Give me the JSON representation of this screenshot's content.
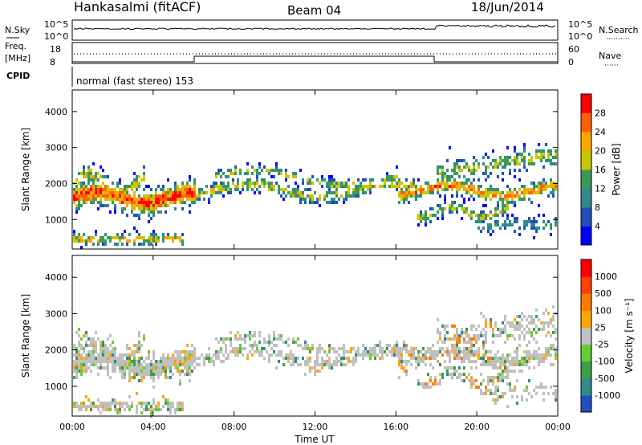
{
  "header": {
    "title": "Hankasalmi (fitACF)",
    "beam": "Beam 04",
    "date": "18/Jun/2014"
  },
  "info_panels": {
    "nsky_label": "N.Sky",
    "nsky_ticks": [
      "10^5",
      "10^0"
    ],
    "nsearch_label": "N.Search",
    "nsearch_ticks": [
      "10^5",
      "10^0"
    ],
    "freq_label_1": "Freq.",
    "freq_label_2": "[MHz]",
    "freq_ticks": [
      "18",
      "8"
    ],
    "nave_label": "Nave",
    "nave_ticks": [
      "60",
      "0"
    ],
    "cpid_label": "CPID",
    "cpid_text": "normal (fast stereo) 153"
  },
  "chart_data": [
    {
      "type": "heatmap",
      "name": "power",
      "ylabel": "Slant Range [km]",
      "ylim": [
        180,
        4600
      ],
      "yticks": [
        1000,
        2000,
        3000,
        4000
      ],
      "xlim": [
        0,
        24
      ],
      "colorbar_label": "Power [dB]",
      "colorbar_ticks": [
        "28",
        "24",
        "20",
        "16",
        "12",
        "8",
        "4"
      ],
      "colorbar_colors": [
        "#0000ff",
        "#1f4fb6",
        "#2f8a8a",
        "#3a9a5a",
        "#c8c800",
        "#ffa500",
        "#ff6000",
        "#ff0000"
      ]
    },
    {
      "type": "heatmap",
      "name": "velocity",
      "ylabel": "Slant Range [km]",
      "ylim": [
        180,
        4600
      ],
      "yticks": [
        1000,
        2000,
        3000,
        4000
      ],
      "xlabel": "Time UT",
      "xlim": [
        0,
        24
      ],
      "xticks": [
        "00:00",
        "04:00",
        "08:00",
        "12:00",
        "16:00",
        "20:00",
        "00:00"
      ],
      "colorbar_label": "Velocity [m s⁻¹]",
      "colorbar_ticks": [
        "1000",
        "500",
        "100",
        "25",
        "-25",
        "-100",
        "-500",
        "-1000"
      ],
      "colorbar_colors": [
        "#2050c0",
        "#2e8b8b",
        "#3aa04a",
        "#66cc33",
        "#c0c0c0",
        "#ffa500",
        "#ff7a00",
        "#ff4000",
        "#ff0000"
      ]
    }
  ]
}
